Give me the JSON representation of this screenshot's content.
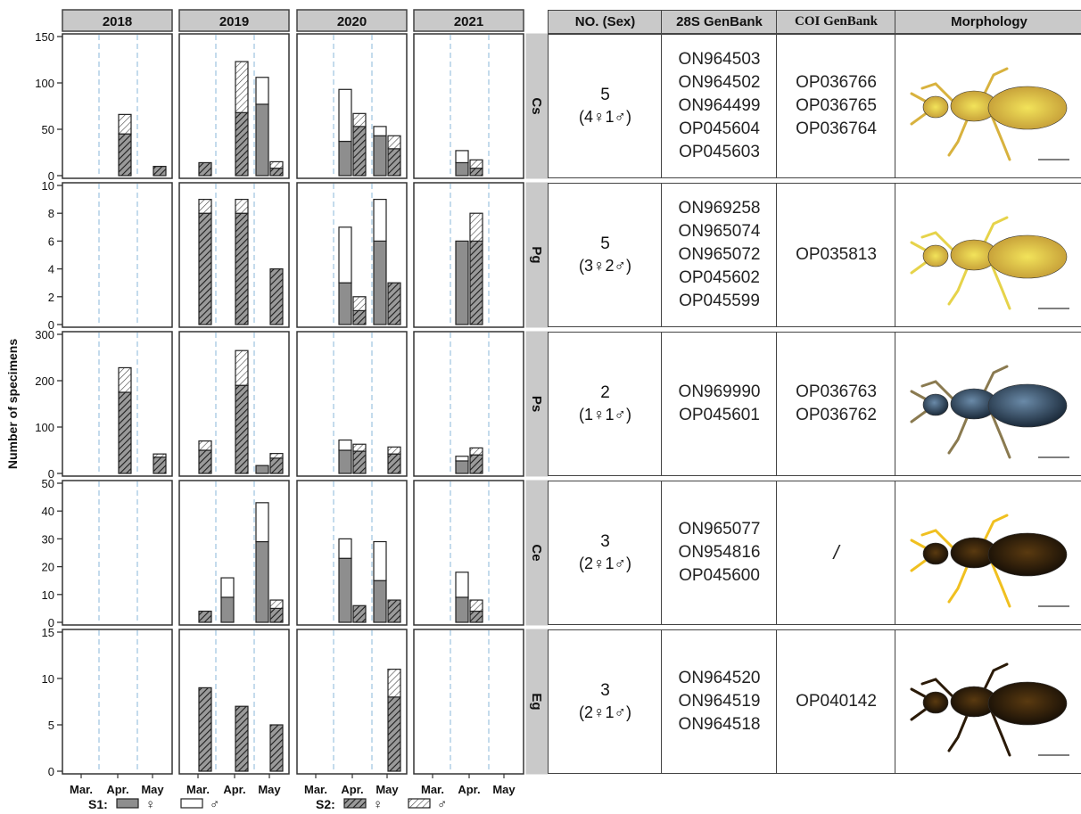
{
  "chart_data": {
    "type": "bar",
    "ylabel": "Number of specimens",
    "years": [
      "2018",
      "2019",
      "2020",
      "2021"
    ],
    "months": [
      "Mar.",
      "Apr.",
      "May"
    ],
    "legend": [
      {
        "group": "S1:",
        "items": [
          {
            "sex": "♀",
            "fill": "gray"
          },
          {
            "sex": "♂",
            "fill": "white"
          }
        ]
      },
      {
        "group": "S2:",
        "items": [
          {
            "sex": "♀",
            "fill": "dark-hatch"
          },
          {
            "sex": "♂",
            "fill": "light-hatch"
          }
        ]
      }
    ],
    "species": [
      {
        "code": "Cs",
        "ylim": [
          0,
          150
        ],
        "yticks": [
          0,
          50,
          100,
          150
        ],
        "bars": [
          {
            "year": "2018",
            "month": "Apr.",
            "site": "S2",
            "female": 45,
            "male": 21
          },
          {
            "year": "2018",
            "month": "May",
            "site": "S2",
            "female": 10,
            "male": 0
          },
          {
            "year": "2019",
            "month": "Mar.",
            "site": "S2",
            "female": 14,
            "male": 0
          },
          {
            "year": "2019",
            "month": "Apr.",
            "site": "S2",
            "female": 68,
            "male": 55
          },
          {
            "year": "2019",
            "month": "May",
            "site": "S1",
            "female": 77,
            "male": 29
          },
          {
            "year": "2019",
            "month": "May",
            "site": "S2",
            "female": 8,
            "male": 7
          },
          {
            "year": "2020",
            "month": "Apr.",
            "site": "S1",
            "female": 37,
            "male": 56
          },
          {
            "year": "2020",
            "month": "Apr.",
            "site": "S2",
            "female": 53,
            "male": 14
          },
          {
            "year": "2020",
            "month": "May",
            "site": "S1",
            "female": 43,
            "male": 10
          },
          {
            "year": "2020",
            "month": "May",
            "site": "S2",
            "female": 29,
            "male": 14
          },
          {
            "year": "2021",
            "month": "Apr.",
            "site": "S1",
            "female": 14,
            "male": 13
          },
          {
            "year": "2021",
            "month": "Apr.",
            "site": "S2",
            "female": 8,
            "male": 9
          }
        ]
      },
      {
        "code": "Pg",
        "ylim": [
          0,
          10
        ],
        "yticks": [
          0,
          2,
          4,
          6,
          8,
          10
        ],
        "bars": [
          {
            "year": "2019",
            "month": "Mar.",
            "site": "S2",
            "female": 8,
            "male": 1
          },
          {
            "year": "2019",
            "month": "Apr.",
            "site": "S2",
            "female": 8,
            "male": 1
          },
          {
            "year": "2019",
            "month": "May",
            "site": "S2",
            "female": 4,
            "male": 0
          },
          {
            "year": "2020",
            "month": "Apr.",
            "site": "S1",
            "female": 3,
            "male": 4
          },
          {
            "year": "2020",
            "month": "Apr.",
            "site": "S2",
            "female": 1,
            "male": 1
          },
          {
            "year": "2020",
            "month": "May",
            "site": "S1",
            "female": 6,
            "male": 3
          },
          {
            "year": "2020",
            "month": "May",
            "site": "S2",
            "female": 3,
            "male": 0
          },
          {
            "year": "2021",
            "month": "Apr.",
            "site": "S1",
            "female": 6,
            "male": 0
          },
          {
            "year": "2021",
            "month": "Apr.",
            "site": "S2",
            "female": 6,
            "male": 2
          }
        ]
      },
      {
        "code": "Ps",
        "ylim": [
          0,
          300
        ],
        "yticks": [
          0,
          100,
          200,
          300
        ],
        "bars": [
          {
            "year": "2018",
            "month": "Apr.",
            "site": "S2",
            "female": 175,
            "male": 53
          },
          {
            "year": "2018",
            "month": "May",
            "site": "S2",
            "female": 35,
            "male": 7
          },
          {
            "year": "2019",
            "month": "Mar.",
            "site": "S2",
            "female": 50,
            "male": 20
          },
          {
            "year": "2019",
            "month": "Apr.",
            "site": "S2",
            "female": 190,
            "male": 75
          },
          {
            "year": "2019",
            "month": "May",
            "site": "S1",
            "female": 17,
            "male": 0
          },
          {
            "year": "2019",
            "month": "May",
            "site": "S2",
            "female": 33,
            "male": 10
          },
          {
            "year": "2020",
            "month": "Apr.",
            "site": "S1",
            "female": 50,
            "male": 22
          },
          {
            "year": "2020",
            "month": "Apr.",
            "site": "S2",
            "female": 48,
            "male": 15
          },
          {
            "year": "2020",
            "month": "May",
            "site": "S2",
            "female": 42,
            "male": 15
          },
          {
            "year": "2021",
            "month": "Apr.",
            "site": "S1",
            "female": 27,
            "male": 10
          },
          {
            "year": "2021",
            "month": "Apr.",
            "site": "S2",
            "female": 40,
            "male": 15
          }
        ]
      },
      {
        "code": "Ce",
        "ylim": [
          0,
          50
        ],
        "yticks": [
          0,
          10,
          20,
          30,
          40,
          50
        ],
        "bars": [
          {
            "year": "2019",
            "month": "Mar.",
            "site": "S2",
            "female": 4,
            "male": 0
          },
          {
            "year": "2019",
            "month": "Apr.",
            "site": "S1",
            "female": 9,
            "male": 7
          },
          {
            "year": "2019",
            "month": "May",
            "site": "S1",
            "female": 29,
            "male": 14
          },
          {
            "year": "2019",
            "month": "May",
            "site": "S2",
            "female": 5,
            "male": 3
          },
          {
            "year": "2020",
            "month": "Apr.",
            "site": "S1",
            "female": 23,
            "male": 7
          },
          {
            "year": "2020",
            "month": "Apr.",
            "site": "S2",
            "female": 6,
            "male": 0
          },
          {
            "year": "2020",
            "month": "May",
            "site": "S1",
            "female": 15,
            "male": 14
          },
          {
            "year": "2020",
            "month": "May",
            "site": "S2",
            "female": 8,
            "male": 0
          },
          {
            "year": "2021",
            "month": "Apr.",
            "site": "S1",
            "female": 9,
            "male": 9
          },
          {
            "year": "2021",
            "month": "Apr.",
            "site": "S2",
            "female": 4,
            "male": 4
          }
        ]
      },
      {
        "code": "Eg",
        "ylim": [
          0,
          15
        ],
        "yticks": [
          0,
          5,
          10,
          15
        ],
        "bars": [
          {
            "year": "2019",
            "month": "Mar.",
            "site": "S2",
            "female": 9,
            "male": 0
          },
          {
            "year": "2019",
            "month": "Apr.",
            "site": "S2",
            "female": 7,
            "male": 0
          },
          {
            "year": "2019",
            "month": "May",
            "site": "S2",
            "female": 5,
            "male": 0
          },
          {
            "year": "2020",
            "month": "May",
            "site": "S2",
            "female": 8,
            "male": 3
          }
        ]
      }
    ]
  },
  "table": {
    "headers": [
      "NO. (Sex)",
      "28S GenBank",
      "COI GenBank",
      "Morphology"
    ],
    "rows": [
      {
        "code": "Cs",
        "count": "5",
        "sex": "(4♀1♂)",
        "s28": [
          "ON964503",
          "ON964502",
          "ON964499",
          "OP045604",
          "OP045603"
        ],
        "coi": [
          "OP036766",
          "OP036765",
          "OP036764"
        ],
        "morph_icon": "insect-specimen-photo-yellow"
      },
      {
        "code": "Pg",
        "count": "5",
        "sex": "(3♀2♂)",
        "s28": [
          "ON969258",
          "ON965074",
          "ON965072",
          "OP045602",
          "OP045599"
        ],
        "coi": [
          "OP035813"
        ],
        "morph_icon": "insect-specimen-photo-yellow-spotted"
      },
      {
        "code": "Ps",
        "count": "2",
        "sex": "(1♀1♂)",
        "s28": [
          "ON969990",
          "OP045601"
        ],
        "coi": [
          "OP036763",
          "OP036762"
        ],
        "morph_icon": "insect-specimen-photo-blue-black"
      },
      {
        "code": "Ce",
        "count": "3",
        "sex": "(2♀1♂)",
        "s28": [
          "ON965077",
          "ON954816",
          "OP045600"
        ],
        "coi": [
          "/"
        ],
        "morph_icon": "insect-specimen-photo-black-yellow-legs"
      },
      {
        "code": "Eg",
        "count": "3",
        "sex": "(2♀1♂)",
        "s28": [
          "ON964520",
          "ON964519",
          "ON964518"
        ],
        "coi": [
          "OP040142"
        ],
        "morph_icon": "insect-specimen-photo-dark-brown"
      }
    ]
  }
}
